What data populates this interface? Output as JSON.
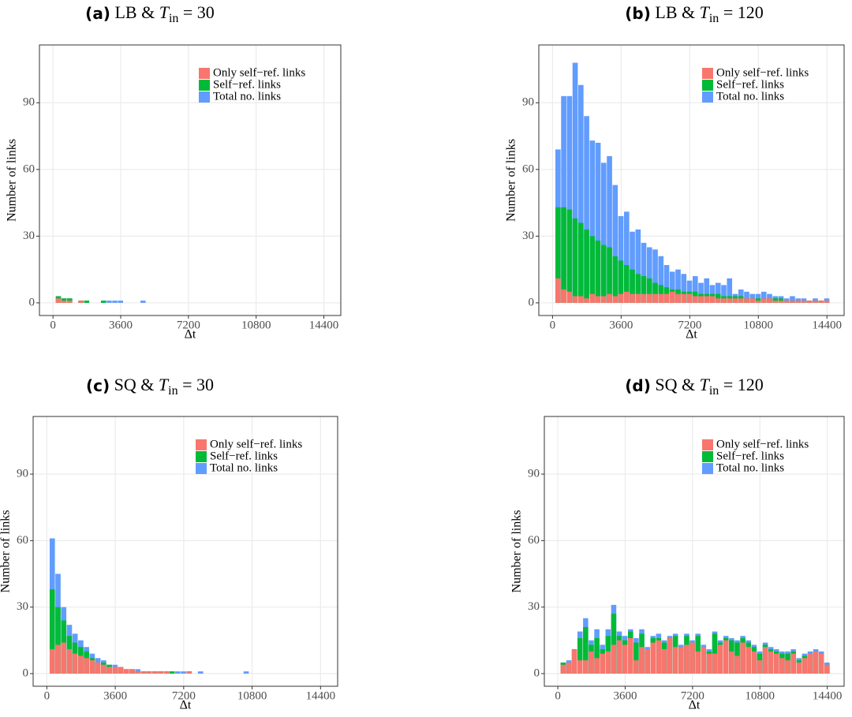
{
  "chart_data": [
    {
      "type": "histogram",
      "title": {
        "label": "(a)",
        "text": "LB & ",
        "var": "T",
        "sub": "in",
        "rest": " = 30"
      },
      "xlabel": "Δt",
      "ylabel": "Number of links",
      "bins": [
        150,
        450,
        750,
        1050,
        1350,
        1650,
        1950,
        2250,
        2550,
        2850,
        3150,
        3450,
        3750,
        4050,
        4350,
        4650,
        4950,
        5250,
        5550,
        5850,
        6150,
        6450,
        6750,
        7050,
        7350,
        7650,
        7950,
        8250,
        8550,
        8850,
        9150,
        9450,
        9750,
        10050,
        10350,
        10650,
        10950,
        11250,
        11550,
        11850,
        12150,
        12450,
        12750,
        13050,
        13350,
        13650,
        13950,
        14250,
        14550
      ],
      "series": [
        {
          "name": "Only self−ref. links",
          "color": "#F8766D",
          "values": [
            2,
            1,
            1,
            0,
            1,
            0,
            0,
            0,
            0,
            0,
            0,
            0,
            0,
            0,
            0,
            0,
            0,
            0,
            0,
            0,
            0,
            0,
            0,
            0,
            0,
            0,
            0,
            0,
            0,
            0,
            0,
            0,
            0,
            0,
            0,
            0,
            0,
            0,
            0,
            0,
            0,
            0,
            0,
            0,
            0,
            0,
            0,
            0
          ]
        },
        {
          "name": "Self−ref. links",
          "color": "#00BA38",
          "values": [
            3,
            2,
            2,
            0,
            1,
            1,
            0,
            0,
            1,
            0,
            0,
            0,
            0,
            0,
            0,
            0,
            0,
            0,
            0,
            0,
            0,
            0,
            0,
            0,
            0,
            0,
            0,
            0,
            0,
            0,
            0,
            0,
            0,
            0,
            0,
            0,
            0,
            0,
            0,
            0,
            0,
            0,
            0,
            0,
            0,
            0,
            0,
            0
          ]
        },
        {
          "name": "Total no. links",
          "color": "#619CFF",
          "values": [
            3,
            2,
            2,
            0,
            1,
            1,
            0,
            0,
            1,
            1,
            1,
            1,
            0,
            0,
            0,
            1,
            0,
            0,
            0,
            0,
            0,
            0,
            0,
            0,
            0,
            0,
            0,
            0,
            0,
            0,
            0,
            0,
            0,
            0,
            0,
            0,
            0,
            0,
            0,
            0,
            0,
            0,
            0,
            0,
            0,
            0,
            0,
            0
          ]
        }
      ],
      "xlim": [
        -720,
        15300
      ],
      "ylim": [
        -5.7,
        116
      ],
      "xticks": [
        0,
        3600,
        7200,
        10800,
        14400
      ],
      "yticks": [
        0,
        30,
        60,
        90
      ],
      "grid": true,
      "legend": "top-right"
    },
    {
      "type": "histogram",
      "title": {
        "label": "(b)",
        "text": "LB & ",
        "var": "T",
        "sub": "in",
        "rest": " = 120"
      },
      "xlabel": "Δt",
      "ylabel": "Number of links",
      "bins": [
        150,
        450,
        750,
        1050,
        1350,
        1650,
        1950,
        2250,
        2550,
        2850,
        3150,
        3450,
        3750,
        4050,
        4350,
        4650,
        4950,
        5250,
        5550,
        5850,
        6150,
        6450,
        6750,
        7050,
        7350,
        7650,
        7950,
        8250,
        8550,
        8850,
        9150,
        9450,
        9750,
        10050,
        10350,
        10650,
        10950,
        11250,
        11550,
        11850,
        12150,
        12450,
        12750,
        13050,
        13350,
        13650,
        13950,
        14250,
        14550
      ],
      "series": [
        {
          "name": "Only self−ref. links",
          "color": "#F8766D",
          "values": [
            11,
            6,
            5,
            3,
            3,
            2,
            4,
            3,
            3,
            4,
            3,
            4,
            5,
            4,
            4,
            4,
            4,
            4,
            4,
            4,
            5,
            4,
            4,
            4,
            3,
            3,
            3,
            3,
            2,
            2,
            2,
            2,
            2,
            2,
            2,
            1,
            2,
            2,
            1,
            1,
            1,
            1,
            1,
            1,
            1,
            1,
            1,
            1
          ]
        },
        {
          "name": "Self−ref. links",
          "color": "#00BA38",
          "values": [
            43,
            43,
            42,
            38,
            36,
            33,
            30,
            28,
            26,
            25,
            21,
            19,
            17,
            15,
            13,
            12,
            11,
            9,
            8,
            7,
            6,
            6,
            5,
            5,
            5,
            4,
            4,
            4,
            4,
            3,
            3,
            3,
            3,
            2,
            2,
            2,
            2,
            2,
            2,
            2,
            1,
            1,
            1,
            1,
            1,
            1,
            1,
            1
          ]
        },
        {
          "name": "Total no. links",
          "color": "#619CFF",
          "values": [
            69,
            93,
            93,
            108,
            98,
            84,
            73,
            72,
            63,
            66,
            53,
            39,
            41,
            32,
            33,
            27,
            25,
            24,
            21,
            17,
            14,
            15,
            13,
            10,
            12,
            9,
            11,
            8,
            9,
            8,
            11,
            4,
            6,
            5,
            4,
            4,
            5,
            4,
            3,
            3,
            2,
            3,
            2,
            2,
            1,
            2,
            1,
            2
          ]
        }
      ],
      "xlim": [
        -720,
        15300
      ],
      "ylim": [
        -5.7,
        116
      ],
      "xticks": [
        0,
        3600,
        7200,
        10800,
        14400
      ],
      "yticks": [
        0,
        30,
        60,
        90
      ],
      "grid": true,
      "legend": "top-right"
    },
    {
      "type": "histogram",
      "title": {
        "label": "(c)",
        "text": "SQ & ",
        "var": "T",
        "sub": "in",
        "rest": " = 30"
      },
      "xlabel": "Δt",
      "ylabel": "Number of links",
      "bins": [
        150,
        450,
        750,
        1050,
        1350,
        1650,
        1950,
        2250,
        2550,
        2850,
        3150,
        3450,
        3750,
        4050,
        4350,
        4650,
        4950,
        5250,
        5550,
        5850,
        6150,
        6450,
        6750,
        7050,
        7350,
        7650,
        7950,
        8250,
        8550,
        8850,
        9150,
        9450,
        9750,
        10050,
        10350,
        10650,
        10950,
        11250,
        11550,
        11850,
        12150,
        12450,
        12750,
        13050,
        13350,
        13650,
        13950,
        14250,
        14550
      ],
      "series": [
        {
          "name": "Only self−ref. links",
          "color": "#F8766D",
          "values": [
            11,
            13,
            14,
            11,
            9,
            8,
            7,
            6,
            5,
            4,
            3,
            3,
            3,
            2,
            2,
            1,
            1,
            1,
            1,
            1,
            1,
            0,
            0,
            0,
            1,
            0,
            0,
            0,
            0,
            0,
            0,
            0,
            0,
            0,
            0,
            0,
            0,
            0,
            0,
            0,
            0,
            0,
            0,
            0,
            0,
            0,
            0,
            0
          ]
        },
        {
          "name": "Self−ref. links",
          "color": "#00BA38",
          "values": [
            38,
            30,
            24,
            17,
            14,
            12,
            10,
            7,
            5,
            5,
            4,
            3,
            3,
            2,
            2,
            1,
            1,
            1,
            1,
            1,
            1,
            1,
            0,
            0,
            1,
            0,
            0,
            0,
            0,
            0,
            0,
            0,
            0,
            0,
            0,
            0,
            0,
            0,
            0,
            0,
            0,
            0,
            0,
            0,
            0,
            0,
            0,
            0
          ]
        },
        {
          "name": "Total no. links",
          "color": "#619CFF",
          "values": [
            61,
            45,
            30,
            22,
            18,
            15,
            12,
            9,
            7,
            6,
            4,
            4,
            3,
            2,
            2,
            2,
            1,
            1,
            1,
            1,
            1,
            1,
            1,
            1,
            1,
            0,
            1,
            0,
            0,
            0,
            0,
            0,
            0,
            0,
            1,
            0,
            0,
            0,
            0,
            0,
            0,
            0,
            0,
            0,
            0,
            0,
            0,
            0
          ]
        }
      ],
      "xlim": [
        -720,
        15300
      ],
      "ylim": [
        -5.7,
        116
      ],
      "xticks": [
        0,
        3600,
        7200,
        10800,
        14400
      ],
      "yticks": [
        0,
        30,
        60,
        90
      ],
      "grid": true,
      "legend": "top-right"
    },
    {
      "type": "histogram",
      "title": {
        "label": "(d)",
        "text": "SQ & ",
        "var": "T",
        "sub": "in",
        "rest": " = 120"
      },
      "xlabel": "Δt",
      "ylabel": "Number of links",
      "bins": [
        150,
        450,
        750,
        1050,
        1350,
        1650,
        1950,
        2250,
        2550,
        2850,
        3150,
        3450,
        3750,
        4050,
        4350,
        4650,
        4950,
        5250,
        5550,
        5850,
        6150,
        6450,
        6750,
        7050,
        7350,
        7650,
        7950,
        8250,
        8550,
        8850,
        9150,
        9450,
        9750,
        10050,
        10350,
        10650,
        10950,
        11250,
        11550,
        11850,
        12150,
        12450,
        12750,
        13050,
        13350,
        13650,
        13950,
        14250,
        14550
      ],
      "series": [
        {
          "name": "Only self−ref. links",
          "color": "#F8766D",
          "values": [
            4,
            5,
            11,
            6,
            6,
            10,
            7,
            9,
            10,
            13,
            15,
            13,
            16,
            6,
            12,
            11,
            14,
            15,
            11,
            16,
            12,
            12,
            13,
            14,
            10,
            12,
            9,
            9,
            13,
            15,
            10,
            8,
            14,
            12,
            10,
            6,
            12,
            10,
            9,
            7,
            6,
            9,
            5,
            7,
            9,
            10,
            9,
            4
          ]
        },
        {
          "name": "Self−ref. links",
          "color": "#00BA38",
          "values": [
            5,
            5,
            11,
            16,
            21,
            13,
            16,
            11,
            17,
            27,
            17,
            15,
            19,
            14,
            18,
            10,
            16,
            16,
            14,
            16,
            17,
            12,
            17,
            14,
            17,
            12,
            10,
            18,
            14,
            16,
            15,
            14,
            16,
            14,
            12,
            9,
            13,
            11,
            10,
            9,
            9,
            10,
            6,
            8,
            9,
            10,
            9,
            4
          ]
        },
        {
          "name": "Total no. links",
          "color": "#619CFF",
          "values": [
            5,
            6,
            11,
            19,
            25,
            15,
            20,
            13,
            20,
            31,
            19,
            17,
            20,
            16,
            20,
            12,
            17,
            18,
            15,
            17,
            18,
            13,
            18,
            15,
            18,
            13,
            11,
            19,
            15,
            17,
            16,
            15,
            17,
            15,
            13,
            10,
            14,
            12,
            11,
            10,
            10,
            11,
            7,
            9,
            10,
            11,
            10,
            5
          ]
        }
      ],
      "xlim": [
        -720,
        15300
      ],
      "ylim": [
        -5.7,
        116
      ],
      "xticks": [
        0,
        3600,
        7200,
        10800,
        14400
      ],
      "yticks": [
        0,
        30,
        60,
        90
      ],
      "grid": true,
      "legend": "top-right"
    }
  ]
}
